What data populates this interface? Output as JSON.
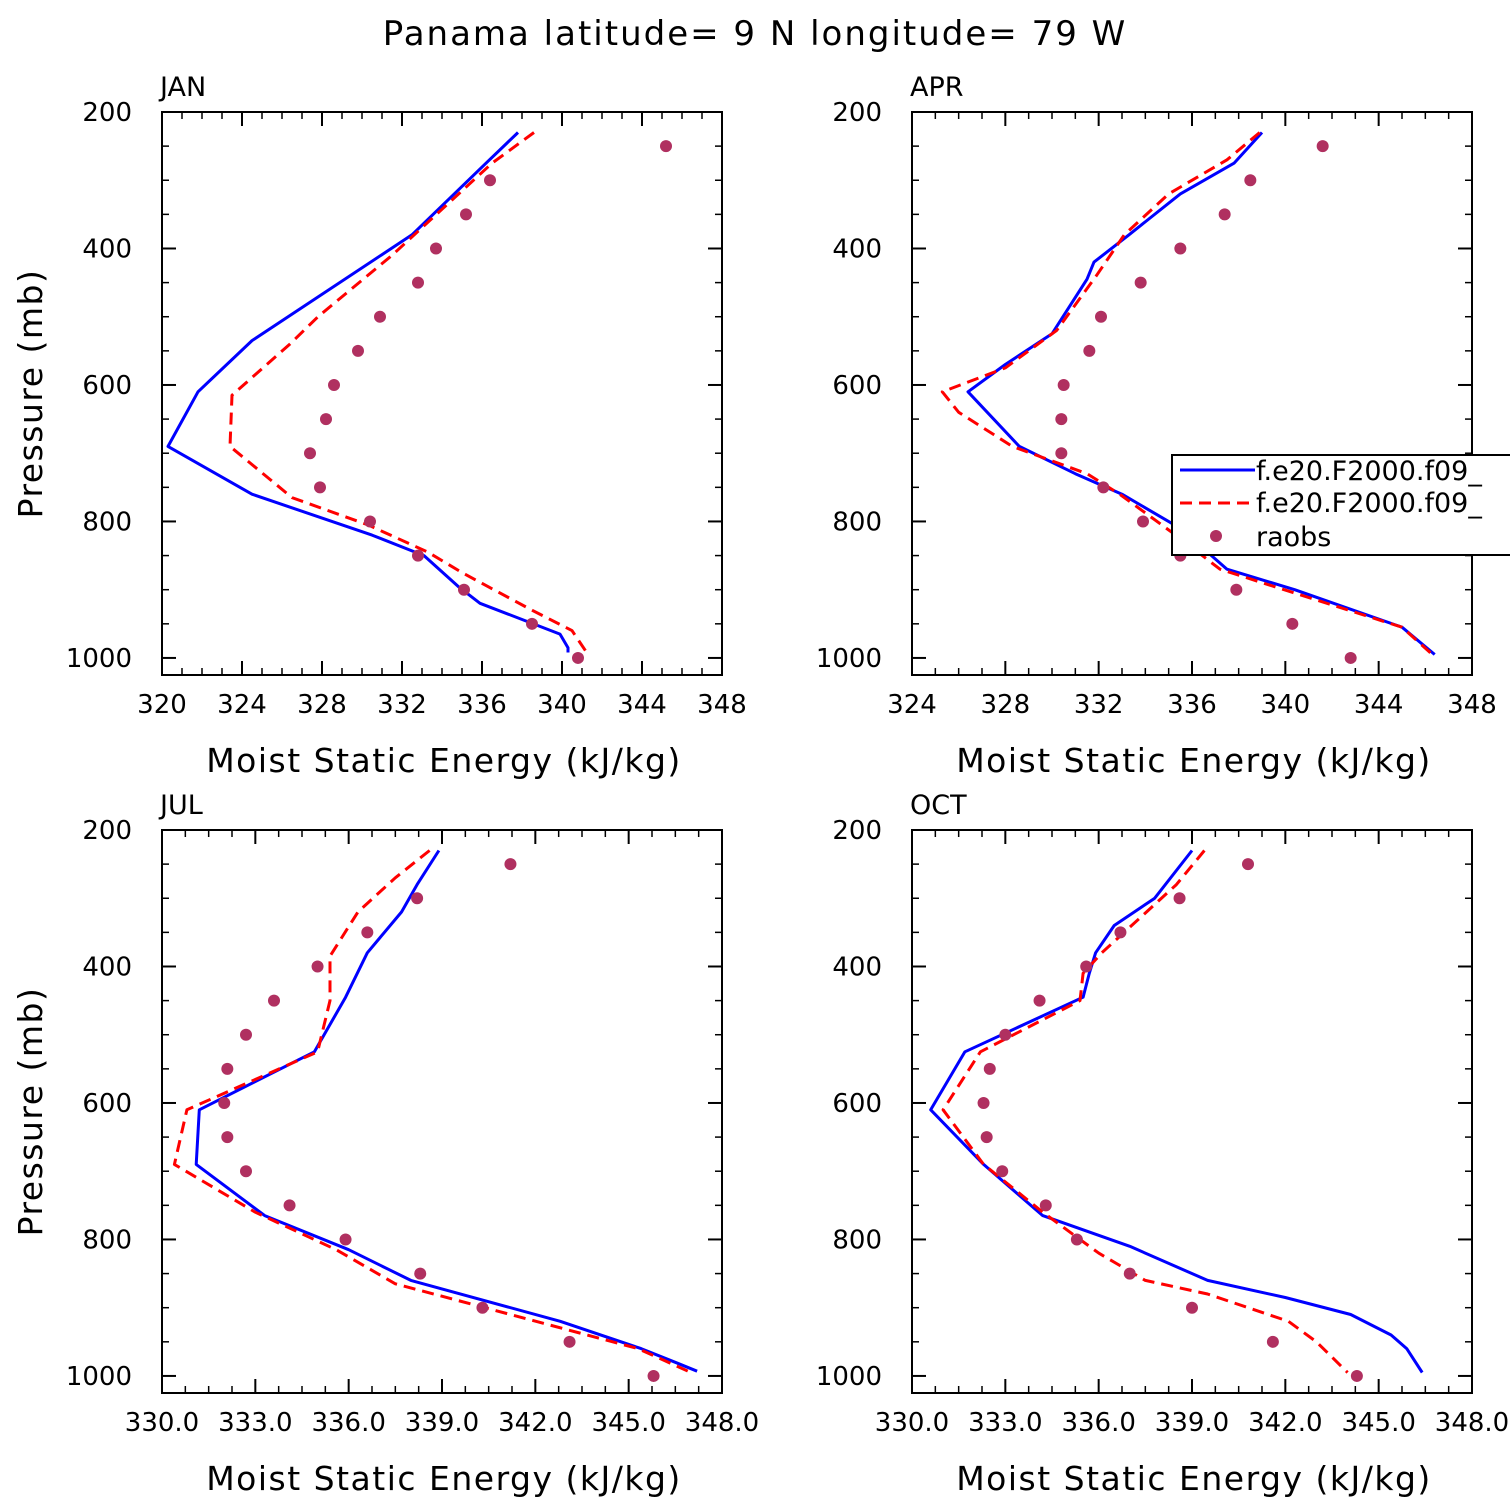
{
  "figure": {
    "title": "Panama  latitude= 9 N longitude= 79 W"
  },
  "colors": {
    "model_a": "#0000ff",
    "model_b": "#ff0000",
    "raobs": "#b03060",
    "axes": "#000000",
    "background": "#ffffff"
  },
  "legend": {
    "entries": [
      {
        "label": "f.e20.F2000.f09_",
        "style": "solid",
        "color": "#0000ff"
      },
      {
        "label": "f.e20.F2000.f09_",
        "style": "dashed",
        "color": "#ff0000"
      },
      {
        "label": "raobs",
        "style": "marker",
        "color": "#b03060"
      }
    ],
    "placement": "inside APR panel, right edge, clipped by figure border"
  },
  "chart_data": [
    {
      "type": "line",
      "title": "JAN",
      "xlabel": "Moist Static Energy (kJ/kg)",
      "ylabel": "Pressure (mb)",
      "xlim": [
        320,
        348
      ],
      "ylim": [
        1025,
        200
      ],
      "xticks": [
        "320",
        "324",
        "328",
        "332",
        "336",
        "340",
        "344",
        "348"
      ],
      "yticks": [
        "200",
        "400",
        "600",
        "800",
        "1000"
      ],
      "series": [
        {
          "name": "f.e20.F2000.f09_",
          "style": "solid",
          "color": "#0000ff",
          "x": [
            337.8,
            336.2,
            332.5,
            324.5,
            321.8,
            320.3,
            324.5,
            330.5,
            333.1,
            334.8,
            335.9,
            339.9,
            340.3,
            340.3
          ],
          "y": [
            230,
            275,
            380,
            535,
            610,
            690,
            760,
            820,
            850,
            895,
            920,
            965,
            985,
            992
          ]
        },
        {
          "name": "f.e20.F2000.f09_",
          "style": "dashed",
          "color": "#ff0000",
          "x": [
            338.6,
            336.5,
            331.5,
            327.8,
            326.4,
            323.5,
            323.4,
            326.5,
            330.3,
            333.3,
            335.0,
            338.5,
            340.5,
            341.3
          ],
          "y": [
            230,
            275,
            410,
            500,
            540,
            615,
            690,
            765,
            805,
            845,
            875,
            930,
            960,
            995
          ]
        },
        {
          "name": "raobs",
          "style": "markers",
          "color": "#b03060",
          "x": [
            345.2,
            336.4,
            335.2,
            333.7,
            332.8,
            330.9,
            329.8,
            328.6,
            328.2,
            327.4,
            327.9,
            330.4,
            332.8,
            335.1,
            338.5,
            340.8
          ],
          "y": [
            250,
            300,
            350,
            400,
            450,
            500,
            550,
            600,
            650,
            700,
            750,
            800,
            850,
            900,
            950,
            1000
          ]
        }
      ]
    },
    {
      "type": "line",
      "title": "APR",
      "xlabel": "Moist Static Energy (kJ/kg)",
      "ylabel": "",
      "xlim": [
        324,
        348
      ],
      "ylim": [
        1025,
        200
      ],
      "xticks": [
        "324",
        "328",
        "332",
        "336",
        "340",
        "344",
        "348"
      ],
      "yticks": [
        "200",
        "400",
        "600",
        "800",
        "1000"
      ],
      "series": [
        {
          "name": "f.e20.F2000.f09_",
          "style": "solid",
          "color": "#0000ff",
          "x": [
            339.0,
            337.8,
            335.5,
            333.3,
            331.8,
            331.5,
            330.0,
            328.0,
            326.4,
            328.6,
            331.0,
            333.0,
            335.5,
            337.5,
            340.4,
            345.0,
            346.4
          ],
          "y": [
            230,
            275,
            320,
            380,
            420,
            445,
            525,
            570,
            610,
            690,
            730,
            760,
            810,
            870,
            900,
            955,
            995
          ]
        },
        {
          "name": "f.e20.F2000.f09_",
          "style": "dashed",
          "color": "#ff0000",
          "x": [
            338.9,
            337.5,
            335.0,
            333.1,
            331.9,
            330.2,
            328.0,
            325.3,
            326.0,
            328.3,
            331.5,
            332.9,
            335.3,
            337.2,
            340.4,
            345.0,
            346.3
          ],
          "y": [
            230,
            270,
            320,
            380,
            440,
            520,
            575,
            610,
            640,
            690,
            730,
            760,
            820,
            870,
            905,
            955,
            995
          ]
        },
        {
          "name": "raobs",
          "style": "markers",
          "color": "#b03060",
          "x": [
            341.6,
            338.5,
            337.4,
            335.5,
            333.8,
            332.1,
            331.6,
            330.5,
            330.4,
            330.4,
            332.2,
            333.9,
            335.5,
            337.9,
            340.3,
            342.8
          ],
          "y": [
            250,
            300,
            350,
            400,
            450,
            500,
            550,
            600,
            650,
            700,
            750,
            800,
            850,
            900,
            950,
            1000
          ]
        }
      ]
    },
    {
      "type": "line",
      "title": "JUL",
      "xlabel": "Moist Static Energy (kJ/kg)",
      "ylabel": "Pressure (mb)",
      "xlim": [
        330,
        348
      ],
      "ylim": [
        1025,
        200
      ],
      "xticks": [
        "330.0",
        "333.0",
        "336.0",
        "339.0",
        "342.0",
        "345.0",
        "348.0"
      ],
      "yticks": [
        "200",
        "400",
        "600",
        "800",
        "1000"
      ],
      "series": [
        {
          "name": "f.e20.F2000.f09_",
          "style": "solid",
          "color": "#0000ff",
          "x": [
            338.9,
            338.2,
            337.7,
            336.6,
            335.9,
            334.9,
            331.2,
            331.1,
            333.3,
            336.0,
            338.0,
            342.8,
            345.4,
            346.5,
            347.2
          ],
          "y": [
            230,
            280,
            320,
            380,
            445,
            525,
            610,
            690,
            765,
            815,
            860,
            920,
            960,
            980,
            993
          ]
        },
        {
          "name": "f.e20.F2000.f09_",
          "style": "dashed",
          "color": "#ff0000",
          "x": [
            338.6,
            337.5,
            336.3,
            335.4,
            335.4,
            335.0,
            330.8,
            330.4,
            333.0,
            335.6,
            337.5,
            341.2,
            345.3,
            347.0
          ],
          "y": [
            230,
            270,
            320,
            385,
            450,
            525,
            610,
            690,
            760,
            815,
            865,
            910,
            960,
            995
          ]
        },
        {
          "name": "raobs",
          "style": "markers",
          "color": "#b03060",
          "x": [
            341.2,
            338.2,
            336.6,
            335.0,
            333.6,
            332.7,
            332.1,
            332.0,
            332.1,
            332.7,
            334.1,
            335.9,
            338.3,
            340.3,
            343.1,
            345.8
          ],
          "y": [
            250,
            300,
            350,
            400,
            450,
            500,
            550,
            600,
            650,
            700,
            750,
            800,
            850,
            900,
            950,
            1000
          ]
        }
      ]
    },
    {
      "type": "line",
      "title": "OCT",
      "xlabel": "Moist Static Energy (kJ/kg)",
      "ylabel": "",
      "xlim": [
        330,
        348
      ],
      "ylim": [
        1025,
        200
      ],
      "xticks": [
        "330.0",
        "333.0",
        "336.0",
        "339.0",
        "342.0",
        "345.0",
        "348.0"
      ],
      "yticks": [
        "200",
        "400",
        "600",
        "800",
        "1000"
      ],
      "series": [
        {
          "name": "f.e20.F2000.f09_",
          "style": "solid",
          "color": "#0000ff",
          "x": [
            339.0,
            337.8,
            336.5,
            335.9,
            335.7,
            335.5,
            331.7,
            330.6,
            332.3,
            334.2,
            337.0,
            339.5,
            342.0,
            344.1,
            345.4,
            345.9,
            346.4
          ],
          "y": [
            230,
            300,
            340,
            380,
            410,
            445,
            525,
            610,
            690,
            765,
            810,
            860,
            885,
            910,
            940,
            960,
            995
          ]
        },
        {
          "name": "f.e20.F2000.f09_",
          "style": "dashed",
          "color": "#ff0000",
          "x": [
            339.4,
            338.5,
            337.3,
            336.1,
            335.5,
            335.4,
            332.2,
            331.0,
            332.3,
            334.2,
            336.0,
            337.5,
            339.5,
            342.1,
            343.0,
            344.0
          ],
          "y": [
            230,
            280,
            330,
            380,
            410,
            450,
            525,
            610,
            690,
            760,
            820,
            860,
            880,
            920,
            950,
            995
          ]
        },
        {
          "name": "raobs",
          "style": "markers",
          "color": "#b03060",
          "x": [
            340.8,
            338.6,
            336.7,
            335.6,
            334.1,
            333.0,
            332.5,
            332.3,
            332.4,
            332.9,
            334.3,
            335.3,
            337.0,
            339.0,
            341.6,
            344.3
          ],
          "y": [
            250,
            300,
            350,
            400,
            450,
            500,
            550,
            600,
            650,
            700,
            750,
            800,
            850,
            900,
            950,
            1000
          ]
        }
      ]
    }
  ]
}
